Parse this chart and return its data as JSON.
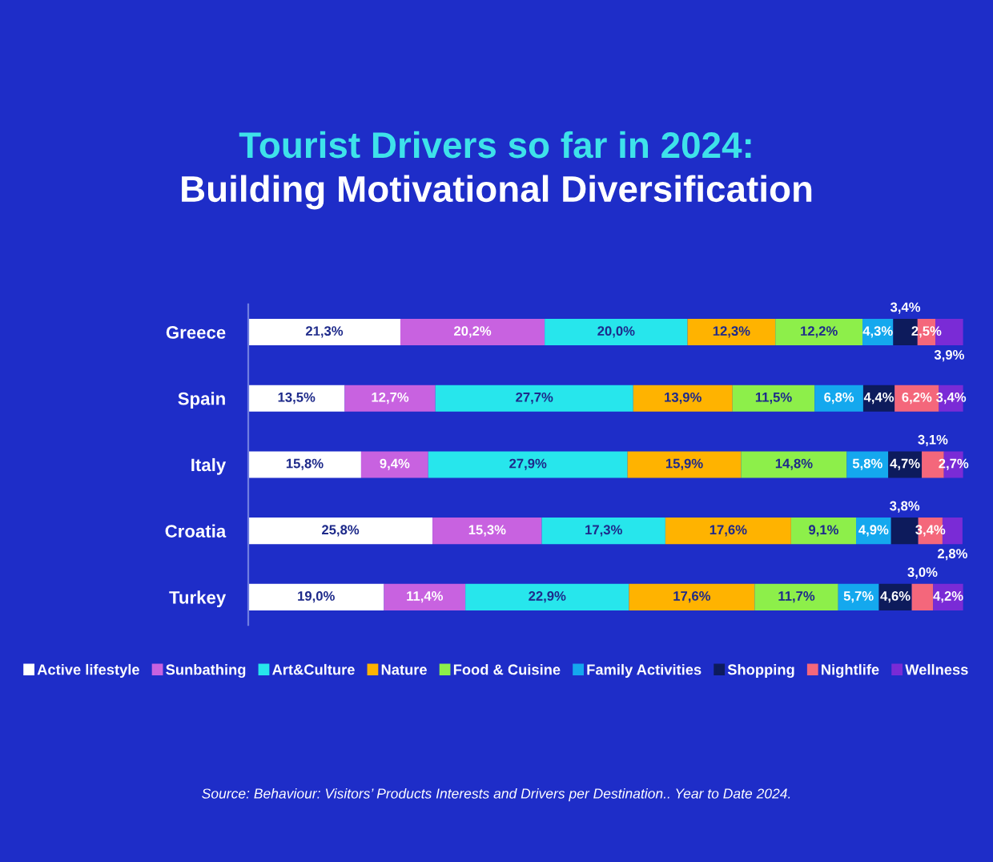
{
  "chart_data": {
    "type": "bar",
    "orientation": "horizontal",
    "stacked": true,
    "title": "Tourist Drivers so far in 2024:",
    "subtitle": "Building Motivational Diversification",
    "categories": [
      "Greece",
      "Spain",
      "Italy",
      "Croatia",
      "Turkey"
    ],
    "series": [
      {
        "name": "Active lifestyle",
        "color": "#ffffff",
        "values": [
          21.3,
          13.5,
          15.8,
          25.8,
          19.0
        ],
        "value_labels": [
          "21,3%",
          "13,5%",
          "15,8%",
          "25,8%",
          "19,0%"
        ]
      },
      {
        "name": "Sunbathing",
        "color": "#c862e0",
        "values": [
          20.2,
          12.7,
          9.4,
          15.3,
          11.4
        ],
        "value_labels": [
          "20,2%",
          "12,7%",
          "9,4%",
          "15,3%",
          "11,4%"
        ]
      },
      {
        "name": "Art&Culture",
        "color": "#27e6ec",
        "values": [
          20.0,
          27.7,
          27.9,
          17.3,
          22.9
        ],
        "value_labels": [
          "20,0%",
          "27,7%",
          "27,9%",
          "17,3%",
          "22,9%"
        ]
      },
      {
        "name": "Nature",
        "color": "#ffb300",
        "values": [
          12.3,
          13.9,
          15.9,
          17.6,
          17.6
        ],
        "value_labels": [
          "12,3%",
          "13,9%",
          "15,9%",
          "17,6%",
          "17,6%"
        ]
      },
      {
        "name": "Food & Cuisine",
        "color": "#8def4a",
        "values": [
          12.2,
          11.5,
          14.8,
          9.1,
          11.7
        ],
        "value_labels": [
          "12,2%",
          "11,5%",
          "14,8%",
          "9,1%",
          "11,7%"
        ]
      },
      {
        "name": "Family Activities",
        "color": "#14a8ee",
        "values": [
          4.3,
          6.8,
          5.8,
          4.9,
          5.7
        ],
        "value_labels": [
          "4,3%",
          "6,8%",
          "5,8%",
          "4,9%",
          "5,7%"
        ]
      },
      {
        "name": "Shopping",
        "color": "#0d1b5c",
        "values": [
          3.4,
          4.4,
          4.7,
          3.8,
          4.6
        ],
        "value_labels": [
          "3,4%",
          "4,4%",
          "4,7%",
          "3,8%",
          "4,6%"
        ]
      },
      {
        "name": "Nightlife",
        "color": "#f4677b",
        "values": [
          2.5,
          6.2,
          3.1,
          3.4,
          3.0
        ],
        "value_labels": [
          "2,5%",
          "6,2%",
          "3,1%",
          "3,4%",
          "3,0%"
        ]
      },
      {
        "name": "Wellness",
        "color": "#7a2bd6",
        "values": [
          3.9,
          3.4,
          2.7,
          2.8,
          4.2
        ],
        "value_labels": [
          "3,9%",
          "3,4%",
          "2,7%",
          "2,8%",
          "4,2%"
        ]
      }
    ],
    "legend": "bottom",
    "grid": false,
    "tick_labels": "y",
    "annotations": [
      "Source: Behaviour: Visitors’ Products Interests and Drivers per Destination.. Year to Date 2024."
    ]
  }
}
